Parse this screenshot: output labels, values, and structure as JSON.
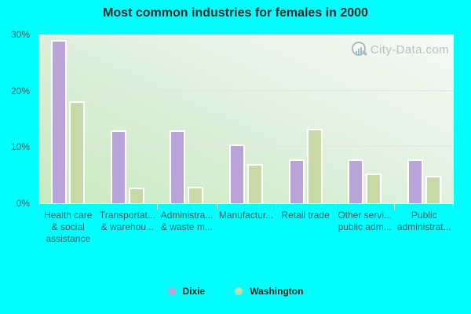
{
  "title": "Most common industries for females in 2000",
  "watermark": {
    "text": "City-Data.com"
  },
  "colors": {
    "background": "#00ffff",
    "plot_gradient_light": "#f6faf7",
    "plot_gradient_mid": "#ddefdb",
    "plot_gradient_dark": "#c8eabe",
    "gridline": "#e8dde9",
    "dixie": "#b9a4da",
    "washington": "#c6d9a6",
    "axis_text": "#3c5f5f",
    "title_text": "#262626",
    "watermark_text": "#a4adb4"
  },
  "chart_data": {
    "type": "bar",
    "title": "Most common industries for females in 2000",
    "categories": [
      {
        "label": "Health care & social assistance",
        "lines": [
          "Health care",
          "& social",
          "assistance"
        ]
      },
      {
        "label": "Transportat... & warehou...",
        "lines": [
          "Transportat...",
          "& warehou..."
        ]
      },
      {
        "label": "Administra... & waste m...",
        "lines": [
          "Administra...",
          "& waste m..."
        ]
      },
      {
        "label": "Manufactur...",
        "lines": [
          "Manufactur..."
        ]
      },
      {
        "label": "Retail trade",
        "lines": [
          "Retail trade"
        ]
      },
      {
        "label": "Other servi... public adm...",
        "lines": [
          "Other servi...",
          "public adm..."
        ]
      },
      {
        "label": "Public administrat...",
        "lines": [
          "Public",
          "administrat..."
        ]
      }
    ],
    "series": [
      {
        "name": "Dixie",
        "color": "#b9a4da",
        "values": [
          29,
          13,
          13,
          10.4,
          7.8,
          7.8,
          7.8
        ]
      },
      {
        "name": "Washington",
        "color": "#c6d9a6",
        "values": [
          18.2,
          2.8,
          3,
          7,
          13.2,
          5.3,
          4.9
        ]
      }
    ],
    "yticks": [
      "0%",
      "10%",
      "20%",
      "30%"
    ],
    "ylim": [
      0,
      30
    ],
    "ylabel": "",
    "xlabel": "",
    "grid": true,
    "legend_position": "bottom"
  }
}
